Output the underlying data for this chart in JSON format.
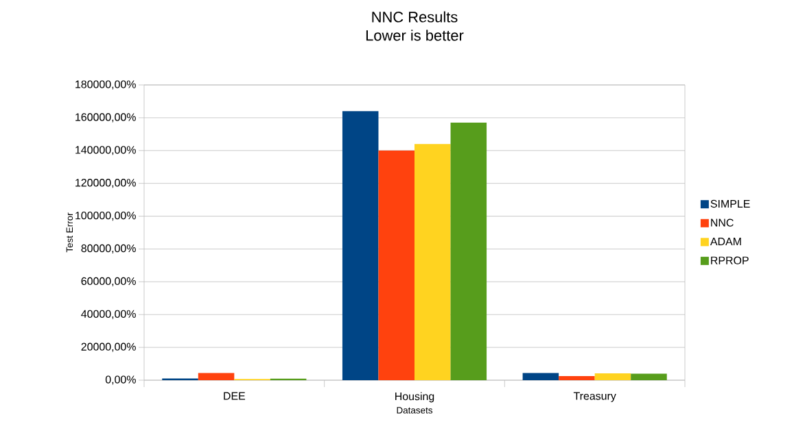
{
  "chart_data": {
    "type": "bar",
    "title": "NNC Results",
    "subtitle": "Lower is better",
    "xlabel": "Datasets",
    "ylabel": "Test Error",
    "categories": [
      "DEE",
      "Housing",
      "Treasury"
    ],
    "series": [
      {
        "name": "SIMPLE",
        "color": "#004586",
        "values": [
          1000,
          164000,
          4400
        ]
      },
      {
        "name": "NNC",
        "color": "#ff420e",
        "values": [
          4400,
          140000,
          2500
        ]
      },
      {
        "name": "ADAM",
        "color": "#ffd320",
        "values": [
          700,
          144000,
          4200
        ]
      },
      {
        "name": "RPROP",
        "color": "#579d1c",
        "values": [
          900,
          157000,
          4000
        ]
      }
    ],
    "ylim": [
      0,
      180000
    ],
    "yticks": [
      {
        "value": 0,
        "label": "0,00%"
      },
      {
        "value": 20000,
        "label": "20000,00%"
      },
      {
        "value": 40000,
        "label": "40000,00%"
      },
      {
        "value": 60000,
        "label": "60000,00%"
      },
      {
        "value": 80000,
        "label": "80000,00%"
      },
      {
        "value": 100000,
        "label": "100000,00%"
      },
      {
        "value": 120000,
        "label": "120000,00%"
      },
      {
        "value": 140000,
        "label": "140000,00%"
      },
      {
        "value": 160000,
        "label": "160000,00%"
      },
      {
        "value": 180000,
        "label": "180000,00%"
      }
    ],
    "grid": "y",
    "legend": "right"
  }
}
